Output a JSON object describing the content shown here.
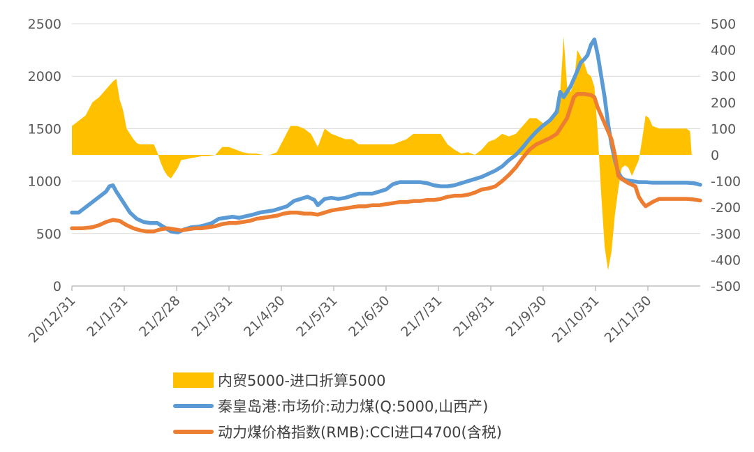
{
  "chart_data": {
    "type": "line",
    "title": "",
    "x_tick_labels": [
      "20/12/31",
      "21/1/31",
      "21/2/28",
      "21/3/31",
      "21/4/30",
      "21/5/31",
      "21/6/30",
      "21/7/31",
      "21/8/31",
      "21/9/30",
      "21/10/31",
      "21/11/30"
    ],
    "left_axis": {
      "ylim": [
        0,
        2500
      ],
      "ticks": [
        "0",
        "500",
        "1000",
        "1500",
        "2000",
        "2500"
      ]
    },
    "right_axis": {
      "ylim": [
        -500,
        500
      ],
      "ticks": [
        "-500",
        "-400",
        "-300",
        "-200",
        "-100",
        "0",
        "100",
        "200",
        "300",
        "400",
        "500"
      ]
    },
    "series": [
      {
        "name": "内贸5000-进口折算5000",
        "type": "area",
        "axis": "right",
        "color": "#FFC000",
        "points": [
          [
            0,
            110
          ],
          [
            2,
            130
          ],
          [
            4,
            150
          ],
          [
            6,
            200
          ],
          [
            8,
            220
          ],
          [
            10,
            250
          ],
          [
            12,
            280
          ],
          [
            13,
            290
          ],
          [
            14,
            210
          ],
          [
            15,
            170
          ],
          [
            16,
            100
          ],
          [
            17,
            80
          ],
          [
            18,
            60
          ],
          [
            19,
            45
          ],
          [
            20,
            40
          ],
          [
            22,
            40
          ],
          [
            24,
            40
          ],
          [
            25,
            10
          ],
          [
            26,
            -30
          ],
          [
            27,
            -60
          ],
          [
            28,
            -80
          ],
          [
            29,
            -90
          ],
          [
            30,
            -70
          ],
          [
            31,
            -50
          ],
          [
            32,
            -20
          ],
          [
            34,
            -15
          ],
          [
            36,
            -10
          ],
          [
            38,
            -5
          ],
          [
            40,
            -5
          ],
          [
            42,
            0
          ],
          [
            44,
            30
          ],
          [
            46,
            30
          ],
          [
            48,
            20
          ],
          [
            50,
            10
          ],
          [
            52,
            5
          ],
          [
            54,
            5
          ],
          [
            56,
            0
          ],
          [
            58,
            0
          ],
          [
            60,
            10
          ],
          [
            62,
            60
          ],
          [
            64,
            110
          ],
          [
            66,
            110
          ],
          [
            68,
            100
          ],
          [
            70,
            80
          ],
          [
            72,
            30
          ],
          [
            74,
            100
          ],
          [
            76,
            80
          ],
          [
            78,
            70
          ],
          [
            80,
            60
          ],
          [
            82,
            60
          ],
          [
            84,
            40
          ],
          [
            86,
            40
          ],
          [
            88,
            40
          ],
          [
            90,
            40
          ],
          [
            92,
            40
          ],
          [
            94,
            40
          ],
          [
            96,
            50
          ],
          [
            98,
            60
          ],
          [
            100,
            80
          ],
          [
            102,
            80
          ],
          [
            104,
            80
          ],
          [
            106,
            80
          ],
          [
            108,
            80
          ],
          [
            110,
            40
          ],
          [
            112,
            20
          ],
          [
            114,
            5
          ],
          [
            116,
            10
          ],
          [
            118,
            0
          ],
          [
            119,
            10
          ],
          [
            120,
            20
          ],
          [
            122,
            50
          ],
          [
            124,
            60
          ],
          [
            126,
            80
          ],
          [
            128,
            70
          ],
          [
            130,
            80
          ],
          [
            132,
            110
          ],
          [
            134,
            140
          ],
          [
            136,
            140
          ],
          [
            138,
            120
          ],
          [
            140,
            140
          ],
          [
            142,
            180
          ],
          [
            143,
            240
          ],
          [
            144,
            450
          ],
          [
            145,
            260
          ],
          [
            146,
            240
          ],
          [
            147,
            270
          ],
          [
            148,
            400
          ],
          [
            150,
            350
          ],
          [
            151,
            310
          ],
          [
            152,
            300
          ],
          [
            153,
            260
          ],
          [
            154,
            80
          ],
          [
            155,
            -150
          ],
          [
            156,
            -350
          ],
          [
            157,
            -440
          ],
          [
            158,
            -370
          ],
          [
            159,
            -230
          ],
          [
            160,
            -130
          ],
          [
            161,
            -50
          ],
          [
            162,
            -40
          ],
          [
            163,
            -50
          ],
          [
            164,
            -80
          ],
          [
            165,
            -50
          ],
          [
            166,
            -20
          ],
          [
            167,
            60
          ],
          [
            168,
            150
          ],
          [
            169,
            140
          ],
          [
            170,
            110
          ],
          [
            172,
            100
          ],
          [
            174,
            100
          ],
          [
            176,
            100
          ],
          [
            178,
            100
          ],
          [
            180,
            100
          ],
          [
            181,
            90
          ],
          [
            181.5,
            0
          ]
        ]
      },
      {
        "name": "秦皇岛港:市场价:动力煤(Q:5000,山西产)",
        "type": "line",
        "axis": "left",
        "color": "#5B9BD5",
        "points": [
          [
            0,
            700
          ],
          [
            2,
            700
          ],
          [
            4,
            750
          ],
          [
            6,
            800
          ],
          [
            8,
            850
          ],
          [
            10,
            900
          ],
          [
            11,
            950
          ],
          [
            12,
            960
          ],
          [
            13,
            900
          ],
          [
            15,
            800
          ],
          [
            17,
            700
          ],
          [
            19,
            640
          ],
          [
            21,
            610
          ],
          [
            23,
            600
          ],
          [
            25,
            600
          ],
          [
            27,
            560
          ],
          [
            29,
            520
          ],
          [
            31,
            510
          ],
          [
            33,
            540
          ],
          [
            35,
            560
          ],
          [
            37,
            565
          ],
          [
            39,
            580
          ],
          [
            41,
            600
          ],
          [
            43,
            640
          ],
          [
            45,
            650
          ],
          [
            47,
            660
          ],
          [
            49,
            650
          ],
          [
            51,
            665
          ],
          [
            53,
            680
          ],
          [
            55,
            700
          ],
          [
            57,
            710
          ],
          [
            59,
            720
          ],
          [
            61,
            740
          ],
          [
            63,
            760
          ],
          [
            65,
            810
          ],
          [
            67,
            830
          ],
          [
            69,
            850
          ],
          [
            71,
            820
          ],
          [
            72,
            770
          ],
          [
            74,
            830
          ],
          [
            76,
            840
          ],
          [
            78,
            830
          ],
          [
            80,
            840
          ],
          [
            82,
            860
          ],
          [
            84,
            880
          ],
          [
            86,
            880
          ],
          [
            88,
            880
          ],
          [
            90,
            900
          ],
          [
            92,
            920
          ],
          [
            94,
            970
          ],
          [
            96,
            990
          ],
          [
            98,
            990
          ],
          [
            100,
            990
          ],
          [
            102,
            990
          ],
          [
            104,
            980
          ],
          [
            106,
            960
          ],
          [
            108,
            950
          ],
          [
            110,
            950
          ],
          [
            112,
            960
          ],
          [
            114,
            980
          ],
          [
            116,
            1000
          ],
          [
            118,
            1020
          ],
          [
            120,
            1040
          ],
          [
            122,
            1070
          ],
          [
            124,
            1100
          ],
          [
            126,
            1140
          ],
          [
            128,
            1200
          ],
          [
            130,
            1250
          ],
          [
            132,
            1320
          ],
          [
            134,
            1400
          ],
          [
            136,
            1470
          ],
          [
            138,
            1530
          ],
          [
            140,
            1580
          ],
          [
            142,
            1660
          ],
          [
            143,
            1850
          ],
          [
            144,
            1800
          ],
          [
            146,
            1900
          ],
          [
            148,
            2050
          ],
          [
            149,
            2130
          ],
          [
            150,
            2160
          ],
          [
            151,
            2200
          ],
          [
            152,
            2300
          ],
          [
            153,
            2350
          ],
          [
            154,
            2200
          ],
          [
            155,
            2000
          ],
          [
            156,
            1800
          ],
          [
            157,
            1550
          ],
          [
            158,
            1350
          ],
          [
            159,
            1200
          ],
          [
            160,
            1080
          ],
          [
            161,
            1030
          ],
          [
            162,
            1010
          ],
          [
            164,
            1000
          ],
          [
            166,
            990
          ],
          [
            168,
            990
          ],
          [
            170,
            985
          ],
          [
            172,
            985
          ],
          [
            174,
            985
          ],
          [
            176,
            985
          ],
          [
            178,
            985
          ],
          [
            180,
            985
          ],
          [
            182,
            980
          ],
          [
            184,
            965
          ]
        ]
      },
      {
        "name": "动力煤价格指数(RMB):CCI进口4700(含税)",
        "type": "line",
        "axis": "left",
        "color": "#ED7D31",
        "points": [
          [
            0,
            550
          ],
          [
            3,
            550
          ],
          [
            6,
            560
          ],
          [
            8,
            580
          ],
          [
            10,
            610
          ],
          [
            12,
            630
          ],
          [
            14,
            620
          ],
          [
            16,
            580
          ],
          [
            18,
            550
          ],
          [
            20,
            530
          ],
          [
            22,
            520
          ],
          [
            24,
            520
          ],
          [
            26,
            540
          ],
          [
            28,
            550
          ],
          [
            30,
            540
          ],
          [
            32,
            530
          ],
          [
            34,
            540
          ],
          [
            36,
            550
          ],
          [
            38,
            550
          ],
          [
            40,
            560
          ],
          [
            42,
            570
          ],
          [
            44,
            590
          ],
          [
            46,
            600
          ],
          [
            48,
            600
          ],
          [
            50,
            610
          ],
          [
            52,
            620
          ],
          [
            54,
            640
          ],
          [
            56,
            650
          ],
          [
            58,
            660
          ],
          [
            60,
            670
          ],
          [
            62,
            690
          ],
          [
            64,
            700
          ],
          [
            66,
            700
          ],
          [
            68,
            690
          ],
          [
            70,
            690
          ],
          [
            72,
            680
          ],
          [
            74,
            700
          ],
          [
            76,
            720
          ],
          [
            78,
            730
          ],
          [
            80,
            740
          ],
          [
            82,
            750
          ],
          [
            84,
            760
          ],
          [
            86,
            760
          ],
          [
            88,
            770
          ],
          [
            90,
            770
          ],
          [
            92,
            780
          ],
          [
            94,
            790
          ],
          [
            96,
            800
          ],
          [
            98,
            800
          ],
          [
            100,
            810
          ],
          [
            102,
            810
          ],
          [
            104,
            820
          ],
          [
            106,
            820
          ],
          [
            108,
            830
          ],
          [
            110,
            850
          ],
          [
            112,
            860
          ],
          [
            114,
            860
          ],
          [
            116,
            870
          ],
          [
            118,
            890
          ],
          [
            120,
            920
          ],
          [
            122,
            930
          ],
          [
            124,
            950
          ],
          [
            126,
            1000
          ],
          [
            128,
            1060
          ],
          [
            130,
            1130
          ],
          [
            132,
            1220
          ],
          [
            134,
            1300
          ],
          [
            136,
            1350
          ],
          [
            138,
            1380
          ],
          [
            140,
            1410
          ],
          [
            142,
            1450
          ],
          [
            143,
            1500
          ],
          [
            145,
            1600
          ],
          [
            147,
            1800
          ],
          [
            148,
            1830
          ],
          [
            149,
            1830
          ],
          [
            150,
            1830
          ],
          [
            152,
            1820
          ],
          [
            153,
            1800
          ],
          [
            154,
            1700
          ],
          [
            156,
            1550
          ],
          [
            158,
            1400
          ],
          [
            159,
            1250
          ],
          [
            160,
            1050
          ],
          [
            161,
            1020
          ],
          [
            163,
            980
          ],
          [
            165,
            950
          ],
          [
            166,
            850
          ],
          [
            167,
            800
          ],
          [
            168,
            760
          ],
          [
            170,
            800
          ],
          [
            172,
            830
          ],
          [
            174,
            830
          ],
          [
            176,
            830
          ],
          [
            178,
            830
          ],
          [
            180,
            830
          ],
          [
            182,
            825
          ],
          [
            184,
            815
          ]
        ]
      }
    ]
  },
  "legend": {
    "items": [
      {
        "label": "内贸5000-进口折算5000"
      },
      {
        "label": "秦皇岛港:市场价:动力煤(Q:5000,山西产)"
      },
      {
        "label": "动力煤价格指数(RMB):CCI进口4700(含税)"
      }
    ]
  }
}
